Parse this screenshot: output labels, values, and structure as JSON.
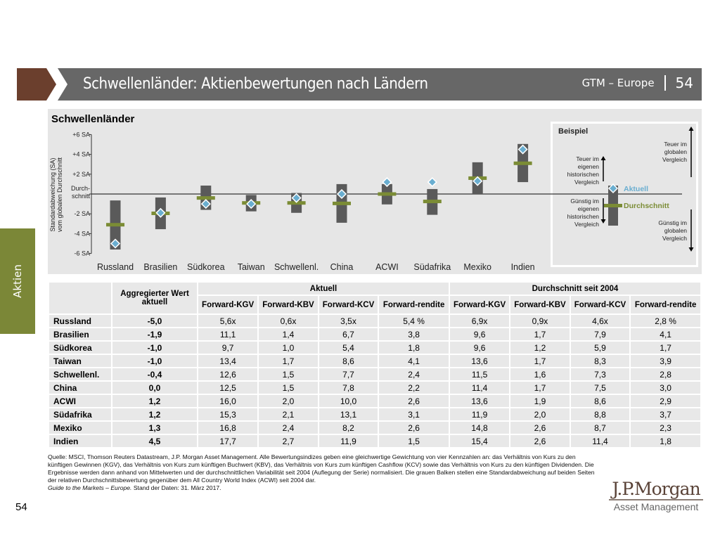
{
  "header": {
    "title": "Schwellenländer: Aktienbewertungen nach Ländern",
    "series": "GTM – Europe",
    "page": "54"
  },
  "side_tab": "Aktien",
  "colors": {
    "bar": "#5a5a5a",
    "average": "#7b8c35",
    "current": "#6aaed0",
    "header": "#676767",
    "brand": "#6b3f2d"
  },
  "chart_data": {
    "type": "range-bar",
    "title": "Schwellenländer",
    "ylabel": "Standardabweichung (SA) vom globalen Durchschnitt",
    "ylim": [
      -6,
      6
    ],
    "yticks": [
      {
        "v": 6,
        "label": "+6 SA"
      },
      {
        "v": 4,
        "label": "+4 SA"
      },
      {
        "v": 2,
        "label": "+2 SA"
      },
      {
        "v": 0,
        "label": "Durch- schnitt"
      },
      {
        "v": -2,
        "label": "-2 SA"
      },
      {
        "v": -4,
        "label": "-4 SA"
      },
      {
        "v": -6,
        "label": "-6 SA"
      }
    ],
    "categories": [
      "Russland",
      "Brasilien",
      "Südkorea",
      "Taiwan",
      "Schwellenl.",
      "China",
      "ACWI",
      "Südafrika",
      "Mexiko",
      "Indien"
    ],
    "range_low": [
      -5.6,
      -3.55,
      -1.6,
      -1.75,
      -1.9,
      -2.9,
      -1.05,
      -2.1,
      0,
      1.2
    ],
    "range_high": [
      -0.65,
      -0.35,
      0.85,
      -0.1,
      0.1,
      1.0,
      1.0,
      0.5,
      3.2,
      5.05
    ],
    "average": [
      -3.1,
      -1.95,
      -0.4,
      -0.9,
      -0.9,
      -0.95,
      0,
      -0.75,
      1.6,
      3.1
    ],
    "current": [
      -5.0,
      -1.9,
      -1.0,
      -1.0,
      -0.4,
      0.0,
      1.2,
      1.2,
      1.3,
      4.5
    ],
    "legend": {
      "title": "Beispiel",
      "current": "Aktuell",
      "average": "Durchschnitt",
      "exp_hist": "Teuer im eigenen historischen Vergleich",
      "cheap_hist": "Günstig im eigenen historischen Vergleich",
      "exp_glob": "Teuer im globalen Vergleich",
      "cheap_glob": "Günstig im globalen Vergleich"
    }
  },
  "table": {
    "h_agg": "Aggregierter Wert aktuell",
    "h_current": "Aktuell",
    "h_avg": "Durchschnitt seit 2004",
    "cols": [
      "Forward-KGV",
      "Forward-KBV",
      "Forward-KCV",
      "Forward-rendite",
      "Forward-KGV",
      "Forward-KBV",
      "Forward-KCV",
      "Forward-rendite"
    ],
    "rows": [
      [
        "Russland",
        "-5,0",
        "5,6x",
        "0,6x",
        "3,5x",
        "5,4 %",
        "6,9x",
        "0,9x",
        "4,6x",
        "2,8 %"
      ],
      [
        "Brasilien",
        "-1,9",
        "11,1",
        "1,4",
        "6,7",
        "3,8",
        "9,6",
        "1,7",
        "7,9",
        "4,1"
      ],
      [
        "Südkorea",
        "-1,0",
        "9,7",
        "1,0",
        "5,4",
        "1,8",
        "9,6",
        "1,2",
        "5,9",
        "1,7"
      ],
      [
        "Taiwan",
        "-1,0",
        "13,4",
        "1,7",
        "8,6",
        "4,1",
        "13,6",
        "1,7",
        "8,3",
        "3,9"
      ],
      [
        "Schwellenl.",
        "-0,4",
        "12,6",
        "1,5",
        "7,7",
        "2,4",
        "11,5",
        "1,6",
        "7,3",
        "2,8"
      ],
      [
        "China",
        "0,0",
        "12,5",
        "1,5",
        "7,8",
        "2,2",
        "11,4",
        "1,7",
        "7,5",
        "3,0"
      ],
      [
        "ACWI",
        "1,2",
        "16,0",
        "2,0",
        "10,0",
        "2,6",
        "13,6",
        "1,9",
        "8,6",
        "2,9"
      ],
      [
        "Südafrika",
        "1,2",
        "15,3",
        "2,1",
        "13,1",
        "3,1",
        "11,9",
        "2,0",
        "8,8",
        "3,7"
      ],
      [
        "Mexiko",
        "1,3",
        "16,8",
        "2,4",
        "8,2",
        "2,6",
        "14,8",
        "2,6",
        "8,7",
        "2,3"
      ],
      [
        "Indien",
        "4,5",
        "17,7",
        "2,7",
        "11,9",
        "1,5",
        "15,4",
        "2,6",
        "11,4",
        "1,8"
      ]
    ]
  },
  "footnote": {
    "source": "Quelle: MSCI, Thomson Reuters Datastream, J.P. Morgan Asset Management. Alle Bewertungsindizes geben eine gleichwertige Gewichtung von vier Kennzahlen an: das Verhältnis von Kurs zu den künftigen Gewinnen (KGV), das Verhältnis von Kurs zum künftigen Buchwert (KBV), das Verhältnis von Kurs zum künftigen Cashflow (KCV) sowie das Verhältnis von Kurs zu den künftigen Dividenden. Die Ergebnisse werden dann anhand von Mittelwerten und der durchschnittlichen Variabilität seit 2004 (Auflegung der Serie) normalisiert. Die grauen Balken stellen eine Standardabweichung auf beiden Seiten der relativen Durchschnittsbewertung gegenüber dem All Country World Index (ACWI) seit 2004 dar.",
    "guide": "Guide to the Markets – Europe.",
    "date": " Stand der Daten: 31. März 2017."
  },
  "page_number": "54",
  "logo": {
    "name": "J.P.Morgan",
    "sub": "Asset Management"
  }
}
